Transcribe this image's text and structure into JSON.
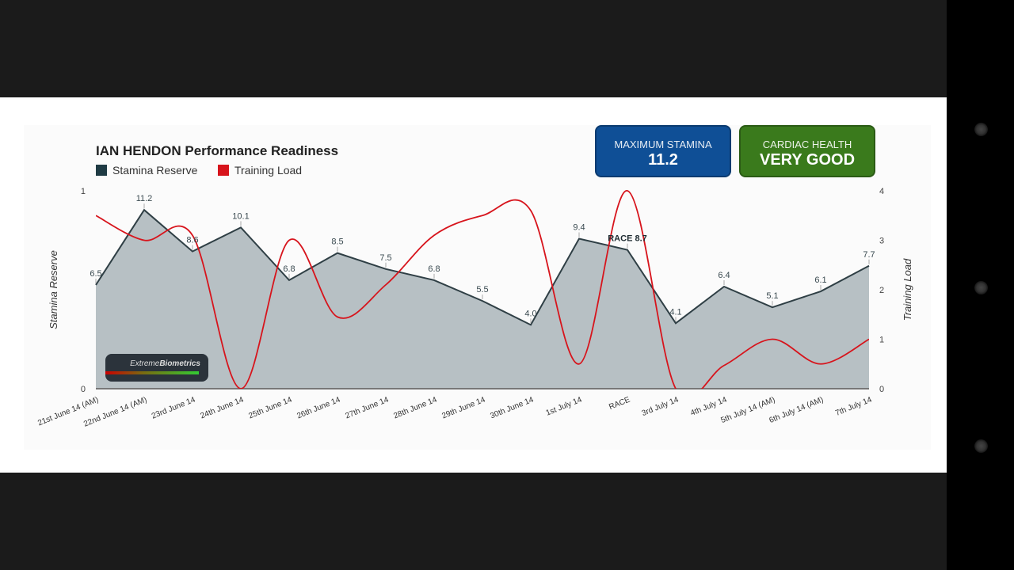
{
  "header": {
    "title": "IAN HENDON Performance Readiness"
  },
  "legend": [
    {
      "label": "Stamina Reserve",
      "color": "#1f3b44"
    },
    {
      "label": "Training Load",
      "color": "#d7141c"
    }
  ],
  "cards": {
    "max_stamina": {
      "label": "MAXIMUM STAMINA",
      "value": "11.2",
      "color": "#0f4f96"
    },
    "cardiac": {
      "label": "CARDIAC HEALTH",
      "value": "VERY GOOD",
      "color": "#3a7a1c"
    }
  },
  "logo": {
    "text_light": "Extreme",
    "text_bold": "Biometrics"
  },
  "chart_data": {
    "type": "area+line",
    "title": "IAN HENDON Performance Readiness",
    "categories": [
      "21st June 14 (AM)",
      "22nd June 14 (AM)",
      "23rd June 14",
      "24th June 14",
      "25th June 14",
      "26th June 14",
      "27th June 14",
      "28th June 14",
      "29th June 14",
      "30th June 14",
      "1st July 14",
      "RACE",
      "3rd July 14",
      "4th July 14",
      "5th July 14 (AM)",
      "6th July 14 (AM)",
      "7th July 14"
    ],
    "series": [
      {
        "name": "Stamina Reserve",
        "type": "area",
        "axis": "left",
        "color": "#2f3f45",
        "fill": "#b7c0c4",
        "values": [
          6.5,
          11.2,
          8.6,
          10.1,
          6.8,
          8.5,
          7.5,
          6.8,
          5.5,
          4.0,
          9.4,
          8.7,
          4.1,
          6.4,
          5.1,
          6.1,
          7.7
        ],
        "labels": [
          "6.5",
          "11.2",
          "8.6",
          "10.1",
          "6.8",
          "8.5",
          "7.5",
          "6.8",
          "5.5",
          "4.0",
          "9.4",
          "RACE 8.7",
          "4.1",
          "6.4",
          "5.1",
          "6.1",
          "7.7"
        ]
      },
      {
        "name": "Training Load",
        "type": "spline",
        "axis": "right",
        "color": "#d7141c",
        "values": [
          3.5,
          3.0,
          3.1,
          0,
          3.0,
          1.45,
          2.1,
          3.1,
          3.5,
          3.6,
          0.5,
          4.0,
          0,
          0.47,
          1.0,
          0.5,
          1.0
        ]
      }
    ],
    "left_axis": {
      "label": "Stamina Reserve",
      "tick_labels": [
        "0",
        "1"
      ],
      "range": [
        0,
        12.4
      ]
    },
    "right_axis": {
      "label": "Training Load",
      "tick_labels": [
        "0",
        "1",
        "2",
        "3",
        "4"
      ],
      "range": [
        0,
        4
      ]
    },
    "grid": false,
    "legend_position": "top-left"
  }
}
